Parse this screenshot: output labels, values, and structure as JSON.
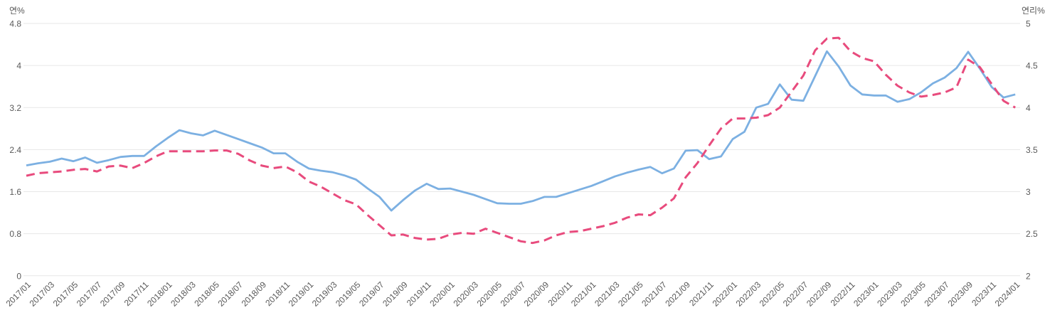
{
  "chart_data": {
    "type": "line",
    "title": "",
    "left_axis": {
      "title": "연%",
      "min": 0,
      "max": 4.8,
      "ticks": [
        4.8,
        4,
        3.2,
        2.4,
        1.6,
        0.8,
        0
      ]
    },
    "right_axis": {
      "title": "연리%",
      "min": 2,
      "max": 5,
      "ticks": [
        5,
        4.5,
        4,
        3.5,
        3,
        2.5,
        2
      ]
    },
    "grid": true,
    "legend_position": "none",
    "x_label_every": 2,
    "x": [
      "2017/01",
      "2017/02",
      "2017/03",
      "2017/04",
      "2017/05",
      "2017/06",
      "2017/07",
      "2017/08",
      "2017/09",
      "2017/10",
      "2017/11",
      "2017/12",
      "2018/01",
      "2018/02",
      "2018/03",
      "2018/04",
      "2018/05",
      "2018/06",
      "2018/07",
      "2018/08",
      "2018/09",
      "2018/10",
      "2018/11",
      "2018/12",
      "2019/01",
      "2019/02",
      "2019/03",
      "2019/04",
      "2019/05",
      "2019/06",
      "2019/07",
      "2019/08",
      "2019/09",
      "2019/10",
      "2019/11",
      "2019/12",
      "2020/01",
      "2020/02",
      "2020/03",
      "2020/04",
      "2020/05",
      "2020/06",
      "2020/07",
      "2020/08",
      "2020/09",
      "2020/10",
      "2020/11",
      "2020/12",
      "2021/01",
      "2021/02",
      "2021/03",
      "2021/04",
      "2021/05",
      "2021/06",
      "2021/07",
      "2021/08",
      "2021/09",
      "2021/10",
      "2021/11",
      "2021/12",
      "2022/01",
      "2022/02",
      "2022/03",
      "2022/04",
      "2022/05",
      "2022/06",
      "2022/07",
      "2022/08",
      "2022/09",
      "2022/10",
      "2022/11",
      "2022/12",
      "2023/01",
      "2023/02",
      "2023/03",
      "2023/04",
      "2023/05",
      "2023/06",
      "2023/07",
      "2023/08",
      "2023/09",
      "2023/10",
      "2023/11",
      "2023/12",
      "2024/01"
    ],
    "series": [
      {
        "name": "연%",
        "axis": "left",
        "color": "#7cb0e2",
        "style": "solid",
        "values": [
          2.1,
          2.14,
          2.17,
          2.23,
          2.18,
          2.25,
          2.15,
          2.2,
          2.26,
          2.28,
          2.28,
          2.46,
          2.62,
          2.77,
          2.71,
          2.67,
          2.76,
          2.68,
          2.6,
          2.52,
          2.44,
          2.33,
          2.33,
          2.17,
          2.04,
          2.0,
          1.97,
          1.91,
          1.83,
          1.66,
          1.5,
          1.24,
          1.44,
          1.62,
          1.75,
          1.65,
          1.66,
          1.6,
          1.54,
          1.46,
          1.38,
          1.37,
          1.37,
          1.42,
          1.5,
          1.5,
          1.57,
          1.64,
          1.71,
          1.8,
          1.89,
          1.96,
          2.02,
          2.07,
          1.95,
          2.04,
          2.38,
          2.39,
          2.22,
          2.27,
          2.6,
          2.74,
          3.2,
          3.27,
          3.64,
          3.35,
          3.33,
          3.8,
          4.27,
          3.98,
          3.62,
          3.45,
          3.43,
          3.43,
          3.31,
          3.36,
          3.49,
          3.66,
          3.77,
          3.95,
          4.26,
          3.94,
          3.59,
          3.39,
          3.45
        ]
      },
      {
        "name": "연리%",
        "axis": "right",
        "color": "#e84b7d",
        "style": "dashed",
        "values": [
          3.19,
          3.22,
          3.23,
          3.24,
          3.26,
          3.27,
          3.24,
          3.3,
          3.31,
          3.28,
          3.34,
          3.42,
          3.48,
          3.48,
          3.48,
          3.48,
          3.49,
          3.49,
          3.45,
          3.37,
          3.31,
          3.28,
          3.3,
          3.23,
          3.12,
          3.06,
          2.98,
          2.9,
          2.85,
          2.72,
          2.6,
          2.48,
          2.49,
          2.45,
          2.43,
          2.44,
          2.49,
          2.51,
          2.5,
          2.56,
          2.51,
          2.46,
          2.41,
          2.39,
          2.42,
          2.48,
          2.52,
          2.53,
          2.56,
          2.59,
          2.63,
          2.69,
          2.73,
          2.72,
          2.81,
          2.92,
          3.17,
          3.34,
          3.55,
          3.75,
          3.87,
          3.87,
          3.88,
          3.91,
          4.0,
          4.19,
          4.38,
          4.68,
          4.82,
          4.83,
          4.67,
          4.59,
          4.55,
          4.39,
          4.26,
          4.18,
          4.13,
          4.15,
          4.18,
          4.24,
          4.57,
          4.48,
          4.28,
          4.08,
          4.0
        ]
      }
    ],
    "colors": {
      "grid": "#e7e7e7",
      "tick_text": "#595959",
      "background": "#ffffff"
    }
  }
}
